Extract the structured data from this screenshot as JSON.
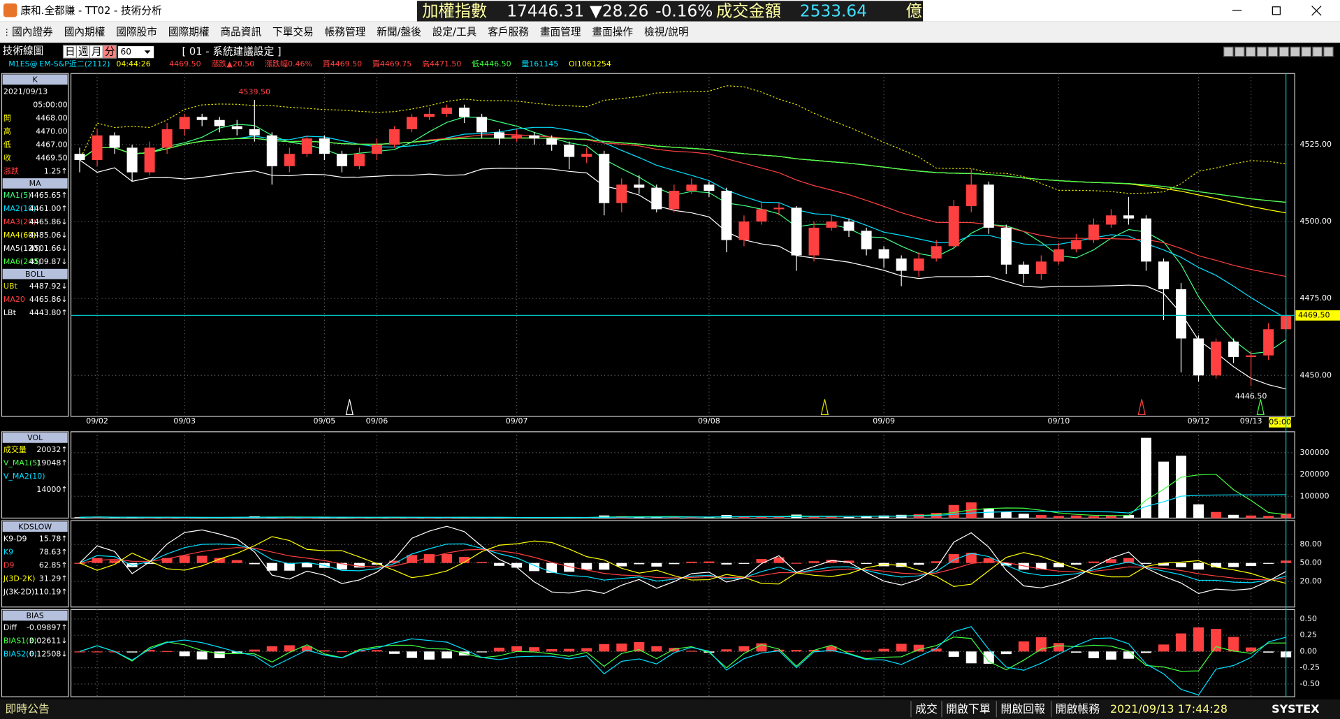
{
  "window": {
    "title": "康和.全都賺 - TT02 - 技術分析"
  },
  "ticker": {
    "index_label": "加權指數",
    "index_value": "17446.31",
    "change": "▼28.26",
    "change_pct": "-0.16%",
    "turnover_label": "成交金額",
    "turnover": "2533.64",
    "unit": "億"
  },
  "menu": [
    "國內證券",
    "國內期權",
    "國際股市",
    "國際期權",
    "商品資訊",
    "下單交易",
    "帳務管理",
    "新聞/盤後",
    "設定/工具",
    "客戶服務",
    "畫面管理",
    "畫面操作",
    "檢視/說明"
  ],
  "toolbar": {
    "label": "技術線圖",
    "periods": [
      "日",
      "週",
      "月",
      "分"
    ],
    "interval": "60",
    "preset": "[ 01 - 系統建議設定 ]"
  },
  "quote": {
    "symbol": "M1ES@",
    "name": "EM-S&P近二(2112)",
    "time": "04:44:26",
    "fields": [
      "4469.50",
      "漲跌▲20.50",
      "漲跌幅0.46%",
      "買4469.50",
      "賣4469.75",
      "高4471.50",
      "低4446.50",
      "量161145",
      "OI1061254"
    ]
  },
  "status": {
    "notice": "即時公告",
    "buttons": [
      "成交",
      "開啟下單",
      "開啟回報",
      "開啟帳務"
    ],
    "datetime": "2021/09/13 17:44:28",
    "brand": "SYSTEX"
  },
  "chart_data": [
    {
      "type": "candlestick",
      "categories": [
        null,
        "09/02",
        null,
        null,
        null,
        null,
        "09/03",
        null,
        null,
        null,
        null,
        null,
        null,
        null,
        "09/05",
        null,
        null,
        "09/06",
        null,
        null,
        null,
        null,
        null,
        null,
        null,
        "09/07",
        null,
        null,
        null,
        null,
        null,
        null,
        null,
        null,
        null,
        null,
        "09/08",
        null,
        null,
        null,
        null,
        null,
        null,
        null,
        null,
        null,
        "09/09",
        null,
        null,
        null,
        null,
        null,
        null,
        null,
        null,
        null,
        "09/10",
        null,
        null,
        null,
        null,
        null,
        null,
        null,
        "09/12",
        null,
        null,
        "09/13",
        null,
        null
      ],
      "open": [
        4522,
        4520,
        4528,
        4524,
        4516,
        4524,
        4530,
        4534,
        4533,
        4531,
        4530,
        4528,
        4518,
        4522,
        4527,
        4522,
        4518,
        4522,
        4525,
        4530,
        4534,
        4535,
        4537,
        4534,
        4529,
        4527,
        4528,
        4527,
        4525,
        4521,
        4522,
        4506,
        4512,
        4511,
        4504,
        4510,
        4512,
        4510,
        4494,
        4500,
        4504,
        4504.5,
        4489,
        4498,
        4500,
        4497,
        4491,
        4488,
        4484,
        4488,
        4492,
        4505,
        4512,
        4498,
        4486,
        4483,
        4487,
        4491,
        4494,
        4499,
        4502,
        4501,
        4487,
        4478,
        4462,
        4450,
        4461,
        4456,
        4456.5,
        4465
      ],
      "high": [
        4524,
        4530,
        4529,
        4525,
        4526,
        4532,
        4535,
        4535,
        4534,
        4533,
        4539.5,
        4529,
        4524,
        4528,
        4528,
        4523,
        4524,
        4527,
        4531,
        4535,
        4537,
        4538,
        4538,
        4535,
        4530,
        4530,
        4529,
        4528,
        4526,
        4524,
        4523,
        4514,
        4515,
        4512,
        4512,
        4514,
        4513,
        4511,
        4502,
        4506,
        4506,
        4505,
        4500,
        4502,
        4501,
        4498,
        4492,
        4489,
        4490,
        4494,
        4507,
        4517,
        4513,
        4499,
        4487,
        4489,
        4493,
        4496,
        4501,
        4504,
        4508,
        4502,
        4488,
        4480,
        4463,
        4462,
        4462,
        4458,
        4467,
        4471.5
      ],
      "low": [
        4516,
        4518,
        4522,
        4513,
        4515,
        4522,
        4528,
        4531,
        4529,
        4528,
        4526,
        4512,
        4516,
        4521,
        4520,
        4516,
        4517,
        4520,
        4524,
        4529,
        4533,
        4534,
        4532,
        4527,
        4525,
        4526,
        4525,
        4523,
        4517,
        4519,
        4502,
        4503,
        4509,
        4503,
        4503,
        4509,
        4508,
        4490,
        4492,
        4499,
        4502,
        4484,
        4487,
        4497,
        4495,
        4489,
        4485,
        4479,
        4482,
        4487,
        4491,
        4503,
        4496,
        4483,
        4480,
        4481,
        4486,
        4490,
        4493,
        4498,
        4499,
        4484,
        4468,
        4451,
        4448,
        4449,
        4454,
        4446.5,
        4455,
        4464
      ],
      "close": [
        4520,
        4528,
        4524,
        4516,
        4524,
        4530,
        4534,
        4533,
        4531,
        4530,
        4528,
        4518,
        4522,
        4527,
        4522,
        4518,
        4522,
        4525,
        4530,
        4534,
        4535,
        4537,
        4534,
        4529,
        4527,
        4528,
        4527,
        4525,
        4521,
        4522,
        4506,
        4512,
        4511,
        4504,
        4510,
        4512,
        4510,
        4494,
        4500,
        4504,
        4504.5,
        4489,
        4498,
        4500,
        4497,
        4491,
        4488,
        4484,
        4488,
        4492,
        4505,
        4512,
        4498,
        4486,
        4483,
        4487,
        4491,
        4494,
        4499,
        4502,
        4501,
        4487,
        4478,
        4462,
        4450,
        4461,
        4456,
        4456.5,
        4465,
        4469.5
      ],
      "up_color": "#ff4040",
      "down_color": "#ffffff",
      "ylim": [
        4436.7,
        4548.1
      ],
      "yticks": [
        {
          "value": 4525,
          "label": "4525.00"
        },
        {
          "value": 4500,
          "label": "4500.00"
        },
        {
          "value": 4475,
          "label": "4475.00"
        },
        {
          "value": 4450,
          "label": "4450.00"
        }
      ],
      "annotations": {
        "high": "4539.50",
        "low": "4446.50",
        "last": "4469.50",
        "cursor_time": "05:00"
      },
      "legend_groups": [
        {
          "title": "K",
          "rows": [
            {
              "name": "2021/09/13",
              "color": "#ffffff"
            },
            {
              "value": "05:00:00"
            },
            {
              "name": "開",
              "value": "4468.00",
              "color": "#ffff00"
            },
            {
              "name": "高",
              "value": "4470.00",
              "color": "#ffff00"
            },
            {
              "name": "低",
              "value": "4467.00",
              "color": "#ffff00"
            },
            {
              "name": "收",
              "value": "4469.50",
              "color": "#ffff00"
            },
            {
              "name": "漲跌",
              "value": "1.25↑",
              "color": "#ff4040"
            }
          ]
        },
        {
          "title": "MA",
          "rows": [
            {
              "name": "MA1(5)",
              "value": "4465.65↑",
              "color": "#40ff80"
            },
            {
              "name": "MA2(10)",
              "value": "4461.00↑",
              "color": "#00e0ff"
            },
            {
              "name": "MA3(20)",
              "value": "4465.86↓",
              "color": "#ff4040"
            },
            {
              "name": "MA4(60)",
              "value": "4485.06↓",
              "color": "#ffff00"
            },
            {
              "name": "MA5(120)",
              "value": "4501.66↓",
              "color": "#ffffff"
            },
            {
              "name": "MA6(240)",
              "value": "4509.87↓",
              "color": "#40ff40"
            }
          ]
        },
        {
          "title": "BOLL",
          "rows": [
            {
              "name": "UBt",
              "value": "4487.92↓",
              "color": "#e0e000"
            },
            {
              "name": "MA20",
              "value": "4465.86↓",
              "color": "#ff4040"
            },
            {
              "name": "LBt",
              "value": "4443.80↑",
              "color": "#ffffff"
            }
          ]
        }
      ]
    },
    {
      "type": "bar",
      "values": [
        4000,
        6000,
        3000,
        5000,
        2000,
        3000,
        4000,
        2000,
        3000,
        5000,
        8000,
        6000,
        3000,
        2000,
        4000,
        5000,
        3000,
        2000,
        4000,
        3000,
        5000,
        4000,
        3000,
        2000,
        3000,
        2000,
        3000,
        4000,
        3000,
        2000,
        12000,
        9000,
        6000,
        5000,
        4000,
        3000,
        4000,
        14000,
        8000,
        6000,
        5000,
        16000,
        9000,
        7000,
        5000,
        8000,
        12000,
        15000,
        18000,
        24000,
        60000,
        72000,
        45000,
        30000,
        20000,
        14000,
        10000,
        12000,
        9000,
        11000,
        14000,
        368000,
        259000,
        286000,
        63000,
        28000,
        15000,
        12000,
        10000,
        20032
      ],
      "ylim": [
        0,
        396000
      ],
      "yticks": [
        300000,
        200000,
        100000
      ],
      "legend_groups": [
        {
          "title": "VOL",
          "rows": [
            {
              "name": "成交量",
              "value": "20032↑",
              "color": "#ffff00"
            },
            {
              "name": "V_MA1(5)",
              "value": "19048↑",
              "color": "#40ff40"
            },
            {
              "name": "V_MA2(10)",
              "color": "#00e0ff"
            },
            {
              "value": "14000↑"
            }
          ]
        }
      ]
    },
    {
      "type": "line",
      "ylim": [
        -21.5,
        118.7
      ],
      "yticks": [
        {
          "value": 80,
          "label": "80.00"
        },
        {
          "value": 50,
          "label": "50.00"
        },
        {
          "value": 20,
          "label": "20.00"
        }
      ],
      "legend_groups": [
        {
          "title": "KDSLOW",
          "rows": [
            {
              "name": "K9-D9",
              "value": "15.78↑",
              "color": "#ffffff"
            },
            {
              "name": "K9",
              "value": "78.63↑",
              "color": "#00e0ff"
            },
            {
              "name": "D9",
              "value": "62.85↑",
              "color": "#ff4040"
            },
            {
              "name": "J(3D-2K)",
              "value": "31.29↑",
              "color": "#ffff00"
            },
            {
              "name": "J(3K-2D)",
              "value": "110.19↑",
              "color": "#ffffff"
            }
          ]
        }
      ]
    },
    {
      "type": "line",
      "ylim": [
        -0.697,
        0.645
      ],
      "yticks": [
        {
          "value": 0.5,
          "label": "0.50"
        },
        {
          "value": 0.25,
          "label": "0.25"
        },
        {
          "value": 0,
          "label": "0.00"
        },
        {
          "value": -0.25,
          "label": "-0.25"
        },
        {
          "value": -0.5,
          "label": "-0.50"
        }
      ],
      "legend_groups": [
        {
          "title": "BIAS",
          "rows": [
            {
              "name": "Diff",
              "value": "-0.09897↑",
              "color": "#ffffff"
            },
            {
              "name": "BIAS1(3)",
              "value": "0.02611↓",
              "color": "#40ff40"
            },
            {
              "name": "BIAS2(6)",
              "value": "0.12508↓",
              "color": "#00e0ff"
            }
          ]
        }
      ]
    }
  ]
}
